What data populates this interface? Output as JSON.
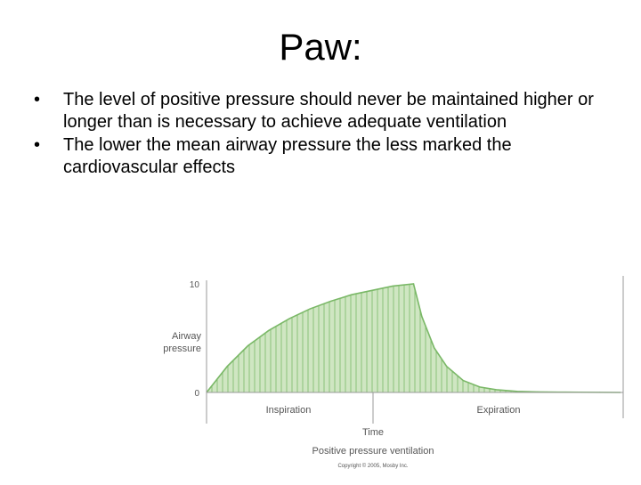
{
  "slide": {
    "title": "Paw:",
    "bullets": [
      "The level of positive pressure should never be maintained higher or longer than is necessary to achieve adequate ventilation",
      "The lower the mean airway pressure the less marked the cardiovascular effects"
    ],
    "bullet_glyph": "•"
  },
  "chart_data": {
    "type": "area",
    "title": "Positive pressure ventilation",
    "credit": "Copyright © 2005, Mosby Inc.",
    "xlabel": "Time",
    "ylabel_line1": "Airway",
    "ylabel_line2": "pressure",
    "yticks": [
      0,
      10
    ],
    "ylim": [
      0,
      10
    ],
    "phases": [
      "Inspiration",
      "Expiration"
    ],
    "series": [
      {
        "x": [
          0,
          0.05,
          0.1,
          0.15,
          0.2,
          0.25,
          0.3,
          0.35,
          0.4,
          0.45,
          0.5,
          0.52,
          0.55,
          0.58,
          0.62,
          0.66,
          0.7,
          0.75,
          0.8,
          0.85,
          0.9,
          0.95,
          1.0
        ],
        "values": [
          0,
          2.4,
          4.3,
          5.7,
          6.8,
          7.7,
          8.4,
          9.0,
          9.4,
          9.8,
          10,
          7.0,
          4.1,
          2.4,
          1.1,
          0.5,
          0.25,
          0.1,
          0.05,
          0.03,
          0.02,
          0.01,
          0
        ]
      }
    ],
    "fill_color": "#cfe6c2",
    "line_color": "#7ab867",
    "hatch_color": "#7ab867",
    "axis_color": "#9a9a9a",
    "text_color": "#555555"
  }
}
